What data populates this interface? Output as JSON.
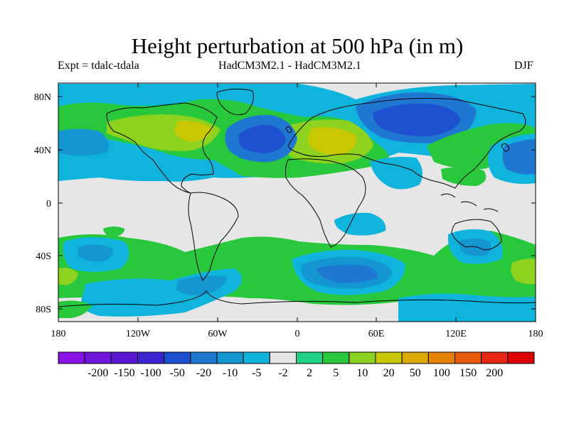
{
  "title": "Height perturbation at 500 hPa (in m)",
  "subtitle_left": "Expt = tdalc-tdala",
  "subtitle_center": "HadCM3M2.1 - HadCM3M2.1",
  "subtitle_right": "DJF",
  "latitude_ticks": [
    "80N",
    "40N",
    "0",
    "40S",
    "80S"
  ],
  "longitude_ticks": [
    "180",
    "120W",
    "60W",
    "0",
    "60E",
    "120E",
    "180"
  ],
  "colorbar": {
    "labels": [
      "-200",
      "-150",
      "-100",
      "-50",
      "-20",
      "-10",
      "-5",
      "-2",
      "2",
      "5",
      "10",
      "20",
      "50",
      "100",
      "150",
      "200"
    ],
    "colors": [
      "#8a12e6",
      "#6e14dc",
      "#5a16d2",
      "#3c24d2",
      "#1e50d2",
      "#1e78d2",
      "#1496d2",
      "#0fb4dc",
      "#e6e6e6",
      "#1ed282",
      "#28c83c",
      "#8cd21e",
      "#c8c800",
      "#dcaa00",
      "#e68200",
      "#e65a0a",
      "#e62814",
      "#dc0000"
    ]
  },
  "palette": {
    "neutral": "#e6e6e6",
    "cyan": "#0fb4dc",
    "lightblue": "#1496d2",
    "blue": "#1e78d2",
    "darkblue": "#1e50d2",
    "teal": "#1ed282",
    "green": "#28c83c",
    "yellowgreen": "#8cd21e",
    "olive": "#c8c800"
  }
}
